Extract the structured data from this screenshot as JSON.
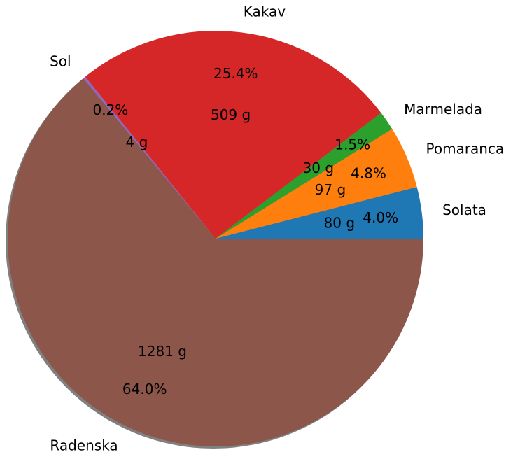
{
  "chart_data": {
    "type": "pie",
    "title": "",
    "shadow": true,
    "start_angle_deg": 0,
    "direction": "counterclockwise",
    "slices": [
      {
        "name": "Solata",
        "value": 80,
        "grams_label": "80 g",
        "percent_label": "4.0%",
        "color": "#1f77b4"
      },
      {
        "name": "Pomaranca",
        "value": 97,
        "grams_label": "97 g",
        "percent_label": "4.8%",
        "color": "#ff7f0e"
      },
      {
        "name": "Marmelada",
        "value": 30,
        "grams_label": "30 g",
        "percent_label": "1.5%",
        "color": "#2ca02c"
      },
      {
        "name": "Kakav",
        "value": 509,
        "grams_label": "509 g",
        "percent_label": "25.4%",
        "color": "#d62728"
      },
      {
        "name": "Sol",
        "value": 4,
        "grams_label": "4 g",
        "percent_label": "0.2%",
        "color": "#9467bd"
      },
      {
        "name": "Radenska",
        "value": 1281,
        "grams_label": "1281 g",
        "percent_label": "64.0%",
        "color": "#8c564b"
      }
    ]
  }
}
